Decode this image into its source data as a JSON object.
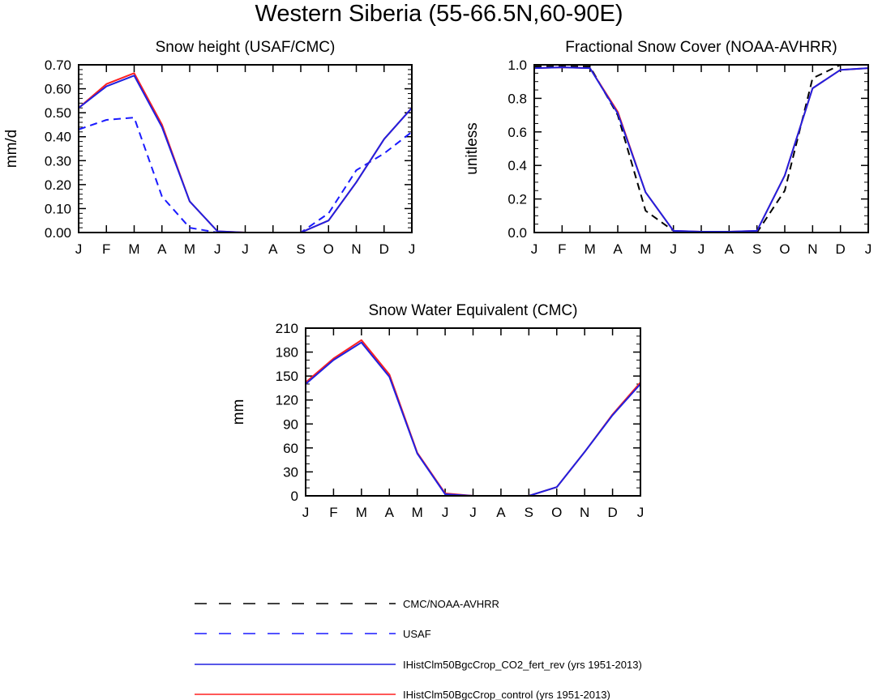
{
  "title": "Western Siberia (55-66.5N,60-90E)",
  "month_labels": [
    "J",
    "F",
    "M",
    "A",
    "M",
    "J",
    "J",
    "A",
    "S",
    "O",
    "N",
    "D",
    "J"
  ],
  "legend": [
    {
      "label": "CMC/NOAA-AVHRR",
      "color": "#000000",
      "dashed": true
    },
    {
      "label": "USAF",
      "color": "#1a1aff",
      "dashed": true
    },
    {
      "label": "IHistClm50BgcCrop_CO2_fert_rev (yrs 1951-2013)",
      "color": "#2020e0",
      "dashed": false
    },
    {
      "label": "IHistClm50BgcCrop_control (yrs 1951-2013)",
      "color": "#ff2020",
      "dashed": false
    }
  ],
  "chart_data": [
    {
      "type": "line",
      "title": "Snow height (USAF/CMC)",
      "ylabel": "mm/d",
      "ylim": [
        0,
        0.7
      ],
      "yticks": [
        "0.00",
        "0.10",
        "0.20",
        "0.30",
        "0.40",
        "0.50",
        "0.60",
        "0.70"
      ],
      "x": [
        "J",
        "F",
        "M",
        "A",
        "M",
        "J",
        "J",
        "A",
        "S",
        "O",
        "N",
        "D",
        "J"
      ],
      "series": [
        {
          "name": "CMC/NOAA-AVHRR",
          "values": [
            0,
            0,
            0,
            0,
            0,
            0,
            0,
            0,
            0,
            0,
            0,
            0,
            0
          ]
        },
        {
          "name": "USAF",
          "values": [
            0.43,
            0.47,
            0.48,
            0.15,
            0.02,
            0.0,
            0.0,
            0.0,
            0.0,
            0.08,
            0.26,
            0.33,
            0.42
          ]
        },
        {
          "name": "IHistClm50BgcCrop_control (yrs 1951-2013)",
          "values": [
            0.52,
            0.62,
            0.665,
            0.45,
            0.13,
            0.005,
            0.0,
            0.0,
            0.0,
            0.05,
            0.21,
            0.39,
            0.52
          ]
        },
        {
          "name": "IHistClm50BgcCrop_CO2_fert_rev (yrs 1951-2013)",
          "values": [
            0.52,
            0.61,
            0.655,
            0.44,
            0.13,
            0.005,
            0.0,
            0.0,
            0.0,
            0.05,
            0.21,
            0.39,
            0.52
          ]
        }
      ]
    },
    {
      "type": "line",
      "title": "Fractional Snow Cover (NOAA-AVHRR)",
      "ylabel": "unitless",
      "ylim": [
        0,
        1.0
      ],
      "yticks": [
        "0.0",
        "0.2",
        "0.4",
        "0.6",
        "0.8",
        "1.0"
      ],
      "x": [
        "J",
        "F",
        "M",
        "A",
        "M",
        "J",
        "J",
        "A",
        "S",
        "O",
        "N",
        "D",
        "J"
      ],
      "series": [
        {
          "name": "CMC/NOAA-AVHRR",
          "values": [
            0.99,
            0.99,
            0.99,
            0.7,
            0.13,
            0.01,
            0.0,
            0.0,
            0.0,
            0.25,
            0.92,
            1.0,
            1.0
          ]
        },
        {
          "name": "IHistClm50BgcCrop_control (yrs 1951-2013)",
          "values": [
            0.98,
            0.985,
            0.98,
            0.72,
            0.24,
            0.01,
            0.005,
            0.005,
            0.01,
            0.34,
            0.86,
            0.97,
            0.98
          ]
        },
        {
          "name": "IHistClm50BgcCrop_CO2_fert_rev (yrs 1951-2013)",
          "values": [
            0.98,
            0.985,
            0.98,
            0.71,
            0.24,
            0.01,
            0.005,
            0.005,
            0.01,
            0.34,
            0.86,
            0.97,
            0.98
          ]
        }
      ]
    },
    {
      "type": "line",
      "title": "Snow Water Equivalent (CMC)",
      "ylabel": "mm",
      "ylim": [
        0,
        210
      ],
      "yticks": [
        "0",
        "30",
        "60",
        "90",
        "120",
        "150",
        "180",
        "210"
      ],
      "x": [
        "J",
        "F",
        "M",
        "A",
        "M",
        "J",
        "J",
        "A",
        "S",
        "O",
        "N",
        "D",
        "J"
      ],
      "series": [
        {
          "name": "CMC/NOAA-AVHRR",
          "values": [
            0,
            0,
            0,
            0,
            0,
            0,
            0,
            0,
            0,
            0,
            0,
            0,
            0
          ]
        },
        {
          "name": "IHistClm50BgcCrop_control (yrs 1951-2013)",
          "values": [
            142,
            172,
            195,
            152,
            54,
            3,
            0,
            0,
            0,
            11,
            55,
            102,
            142
          ]
        },
        {
          "name": "IHistClm50BgcCrop_CO2_fert_rev (yrs 1951-2013)",
          "values": [
            140,
            170,
            192,
            149,
            53,
            2,
            0,
            0,
            0,
            11,
            55,
            101,
            140
          ]
        }
      ]
    }
  ]
}
